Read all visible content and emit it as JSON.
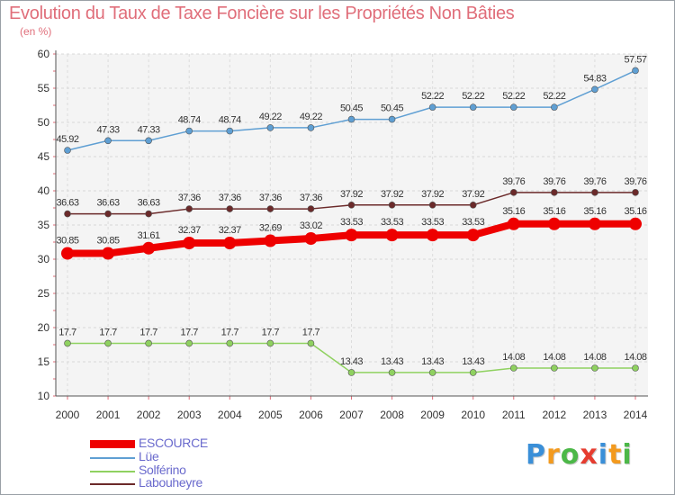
{
  "chart_data": {
    "type": "line",
    "title": "Evolution du Taux de Taxe Foncière sur les Propriétés Non Bâties",
    "ylabel": "(en %)",
    "xlabel": "",
    "ylim": [
      10,
      60
    ],
    "yticks": [
      10,
      15,
      20,
      25,
      30,
      35,
      40,
      45,
      50,
      55,
      60
    ],
    "grid": true,
    "categories": [
      "2000",
      "2001",
      "2002",
      "2003",
      "2004",
      "2005",
      "2006",
      "2007",
      "2008",
      "2009",
      "2010",
      "2011",
      "2012",
      "2013",
      "2014"
    ],
    "series": [
      {
        "name": "ESCOURCE",
        "color": "#ee0000",
        "emphasis": true,
        "values": [
          30.85,
          30.85,
          31.61,
          32.37,
          32.37,
          32.69,
          33.02,
          33.53,
          33.53,
          33.53,
          33.53,
          35.16,
          35.16,
          35.16,
          35.16
        ],
        "labels": [
          "30.85",
          "30.85",
          "31.61",
          "32.37",
          "32.37",
          "32.69",
          "33.02",
          "33.53",
          "33.53",
          "33.53",
          "33.53",
          "35.16",
          "35.16",
          "35.16",
          "35.16"
        ]
      },
      {
        "name": "Lüe",
        "color": "#5f9fd3",
        "emphasis": false,
        "values": [
          45.92,
          47.33,
          47.33,
          48.74,
          48.74,
          49.22,
          49.22,
          50.45,
          50.45,
          52.22,
          52.22,
          52.22,
          52.22,
          54.83,
          57.57
        ],
        "labels": [
          "45.92",
          "47.33",
          "47.33",
          "48.74",
          "48.74",
          "49.22",
          "49.22",
          "50.45",
          "50.45",
          "52.22",
          "52.22",
          "52.22",
          "52.22",
          "54.83",
          "57.57"
        ]
      },
      {
        "name": "Solférino",
        "color": "#8fd160",
        "emphasis": false,
        "values": [
          17.7,
          17.7,
          17.7,
          17.7,
          17.7,
          17.7,
          17.7,
          13.43,
          13.43,
          13.43,
          13.43,
          14.08,
          14.08,
          14.08,
          14.08
        ],
        "labels": [
          "17.7",
          "17.7",
          "17.7",
          "17.7",
          "17.7",
          "17.7",
          "17.7",
          "13.43",
          "13.43",
          "13.43",
          "13.43",
          "14.08",
          "14.08",
          "14.08",
          "14.08"
        ]
      },
      {
        "name": "Labouheyre",
        "color": "#6b2a2a",
        "emphasis": false,
        "values": [
          36.63,
          36.63,
          36.63,
          37.36,
          37.36,
          37.36,
          37.36,
          37.92,
          37.92,
          37.92,
          37.92,
          39.76,
          39.76,
          39.76,
          39.76
        ],
        "labels": [
          "36.63",
          "36.63",
          "36.63",
          "37.36",
          "37.36",
          "37.36",
          "37.36",
          "37.92",
          "37.92",
          "37.92",
          "37.92",
          "39.76",
          "39.76",
          "39.76",
          "39.76"
        ]
      }
    ],
    "legend_position": "bottom-left"
  },
  "brand": {
    "letters": [
      "P",
      "r",
      "o",
      "x",
      "i",
      "t",
      "i"
    ],
    "colors": [
      "#3a8fd8",
      "#f39a1e",
      "#4cb848",
      "#e63c2f",
      "#3a8fd8",
      "#f39a1e",
      "#4cb848"
    ]
  }
}
